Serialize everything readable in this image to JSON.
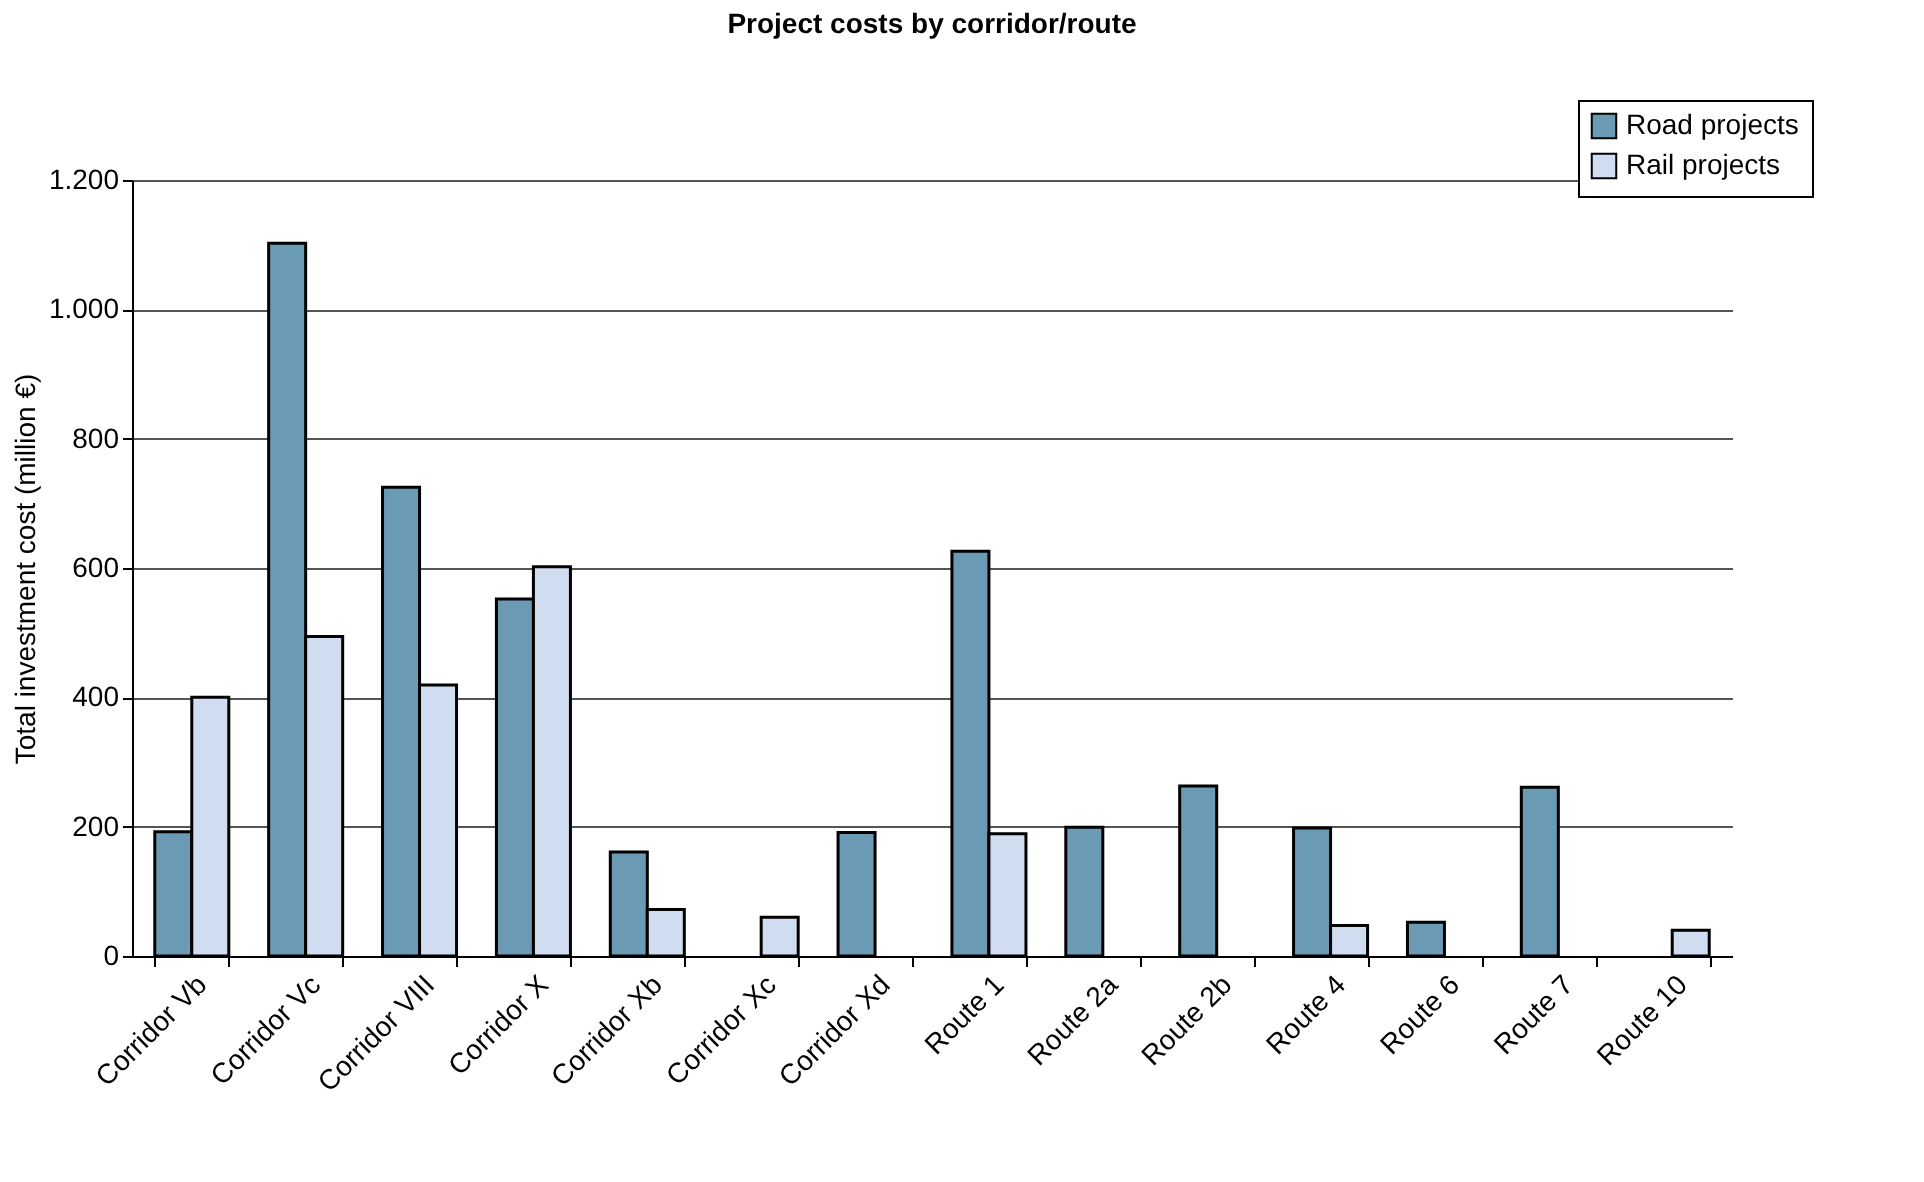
{
  "chart_data": {
    "type": "bar",
    "title": "Project costs by corridor/route",
    "ylabel": "Total investment cost (million €)",
    "categories": [
      "Corridor Vb",
      "Corridor Vc",
      "Corridor VIII",
      "Corridor X",
      "Corridor Xb",
      "Corridor Xc",
      "Corridor Xd",
      "Route 1",
      "Route 2a",
      "Route 2b",
      "Route 4",
      "Route 6",
      "Route 7",
      "Route 10"
    ],
    "series": [
      {
        "name": "Road projects",
        "color": "#6a9ab4",
        "values": [
          192,
          1102,
          725,
          552,
          161,
          null,
          191,
          626,
          199,
          263,
          198,
          52,
          261,
          null
        ]
      },
      {
        "name": "Rail projects",
        "color": "#d0ddf0",
        "values": [
          400,
          494,
          419,
          602,
          72,
          60,
          null,
          189,
          null,
          null,
          47,
          null,
          null,
          40
        ]
      }
    ],
    "ylim": [
      0,
      1200
    ],
    "yticks": [
      0,
      200,
      400,
      600,
      800,
      {
        "value": 1000,
        "label": "1.000"
      },
      {
        "value": 1200,
        "label": "1.200"
      }
    ],
    "grid": "y",
    "legend": "top right"
  }
}
